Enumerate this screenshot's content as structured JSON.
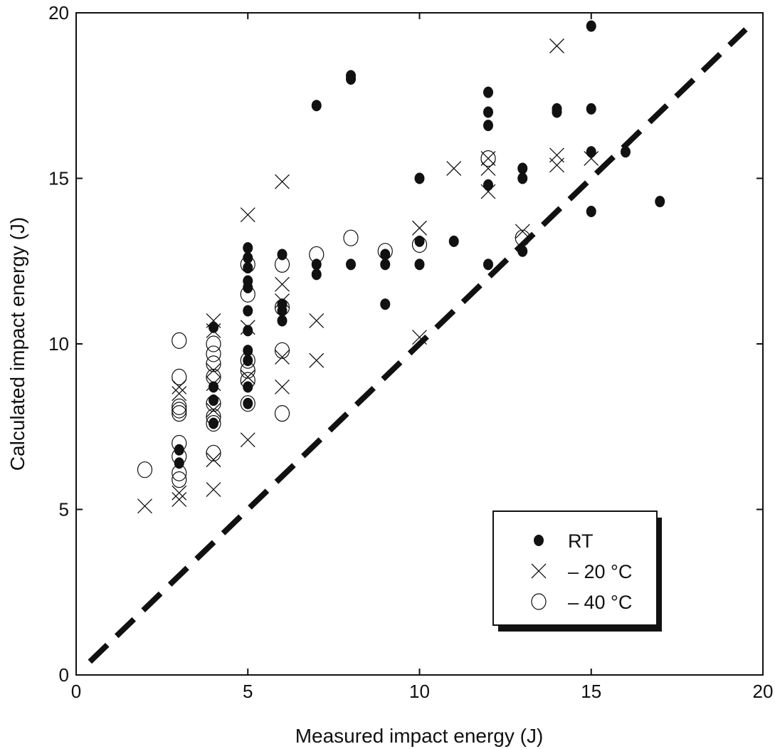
{
  "chart_data": {
    "type": "scatter",
    "title": "",
    "xlabel": "Measured impact energy (J)",
    "ylabel": "Calculated impact energy (J)",
    "xlim": [
      0,
      20
    ],
    "ylim": [
      0,
      20
    ],
    "xticks": [
      0,
      5,
      10,
      15,
      20
    ],
    "yticks": [
      0,
      5,
      10,
      15,
      20
    ],
    "grid": false,
    "legend_position": "bottom-right",
    "reference_line": {
      "style": "dashed",
      "from": [
        0.4,
        0.4
      ],
      "to": [
        19.5,
        19.5
      ]
    },
    "series": [
      {
        "name": "RT",
        "marker": "filled-circle",
        "points": [
          [
            3,
            6.4
          ],
          [
            3,
            6.8
          ],
          [
            4,
            7.6
          ],
          [
            4,
            8.3
          ],
          [
            4,
            8.7
          ],
          [
            4,
            10.5
          ],
          [
            5,
            8.2
          ],
          [
            5,
            8.7
          ],
          [
            5,
            9.5
          ],
          [
            5,
            9.8
          ],
          [
            5,
            10.4
          ],
          [
            5,
            11.0
          ],
          [
            5,
            11.7
          ],
          [
            5,
            11.9
          ],
          [
            5,
            12.3
          ],
          [
            5,
            12.6
          ],
          [
            5,
            12.9
          ],
          [
            6,
            10.7
          ],
          [
            6,
            11.0
          ],
          [
            6,
            11.2
          ],
          [
            6,
            12.7
          ],
          [
            7,
            12.1
          ],
          [
            7,
            12.4
          ],
          [
            7,
            17.2
          ],
          [
            8,
            12.4
          ],
          [
            8,
            18.0
          ],
          [
            8,
            18.1
          ],
          [
            9,
            11.2
          ],
          [
            9,
            12.4
          ],
          [
            9,
            12.7
          ],
          [
            10,
            12.4
          ],
          [
            10,
            13.1
          ],
          [
            10,
            15.0
          ],
          [
            11,
            13.1
          ],
          [
            12,
            12.4
          ],
          [
            12,
            14.8
          ],
          [
            12,
            16.6
          ],
          [
            12,
            17.0
          ],
          [
            12,
            17.6
          ],
          [
            13,
            12.8
          ],
          [
            13,
            15.0
          ],
          [
            13,
            15.3
          ],
          [
            14,
            17.0
          ],
          [
            14,
            17.1
          ],
          [
            15,
            14.0
          ],
          [
            15,
            15.8
          ],
          [
            15,
            17.1
          ],
          [
            15,
            19.6
          ],
          [
            16,
            15.8
          ],
          [
            17,
            14.3
          ]
        ]
      },
      {
        "name": "– 20 °C",
        "marker": "x",
        "points": [
          [
            2,
            5.1
          ],
          [
            3,
            5.3
          ],
          [
            3,
            5.5
          ],
          [
            3,
            8.5
          ],
          [
            3,
            8.7
          ],
          [
            4,
            5.6
          ],
          [
            4,
            6.5
          ],
          [
            4,
            8.0
          ],
          [
            4,
            8.8
          ],
          [
            4,
            9.2
          ],
          [
            4,
            10.4
          ],
          [
            4,
            10.7
          ],
          [
            5,
            7.1
          ],
          [
            5,
            9.0
          ],
          [
            5,
            10.5
          ],
          [
            5,
            13.9
          ],
          [
            6,
            8.7
          ],
          [
            6,
            9.6
          ],
          [
            6,
            11.3
          ],
          [
            6,
            11.8
          ],
          [
            6,
            14.9
          ],
          [
            7,
            9.5
          ],
          [
            7,
            10.7
          ],
          [
            10,
            10.2
          ],
          [
            10,
            13.5
          ],
          [
            11,
            15.3
          ],
          [
            12,
            14.6
          ],
          [
            12,
            15.3
          ],
          [
            12,
            15.6
          ],
          [
            13,
            13.4
          ],
          [
            14,
            15.4
          ],
          [
            14,
            15.7
          ],
          [
            14,
            19.0
          ],
          [
            15,
            15.6
          ]
        ]
      },
      {
        "name": "– 40 °C",
        "marker": "open-circle",
        "points": [
          [
            2,
            6.2
          ],
          [
            3,
            5.9
          ],
          [
            3,
            6.1
          ],
          [
            3,
            6.6
          ],
          [
            3,
            7.0
          ],
          [
            3,
            7.9
          ],
          [
            3,
            8.0
          ],
          [
            3,
            8.1
          ],
          [
            3,
            9.0
          ],
          [
            3,
            10.1
          ],
          [
            4,
            6.7
          ],
          [
            4,
            7.6
          ],
          [
            4,
            7.8
          ],
          [
            4,
            8.2
          ],
          [
            4,
            9.0
          ],
          [
            4,
            9.4
          ],
          [
            4,
            9.7
          ],
          [
            4,
            10.0
          ],
          [
            5,
            8.2
          ],
          [
            5,
            8.9
          ],
          [
            5,
            9.2
          ],
          [
            5,
            9.5
          ],
          [
            5,
            11.5
          ],
          [
            5,
            12.4
          ],
          [
            6,
            7.9
          ],
          [
            6,
            9.8
          ],
          [
            6,
            11.1
          ],
          [
            6,
            12.4
          ],
          [
            7,
            12.7
          ],
          [
            8,
            13.2
          ],
          [
            9,
            12.8
          ],
          [
            10,
            13.0
          ],
          [
            12,
            15.6
          ],
          [
            13,
            13.2
          ]
        ]
      }
    ]
  }
}
